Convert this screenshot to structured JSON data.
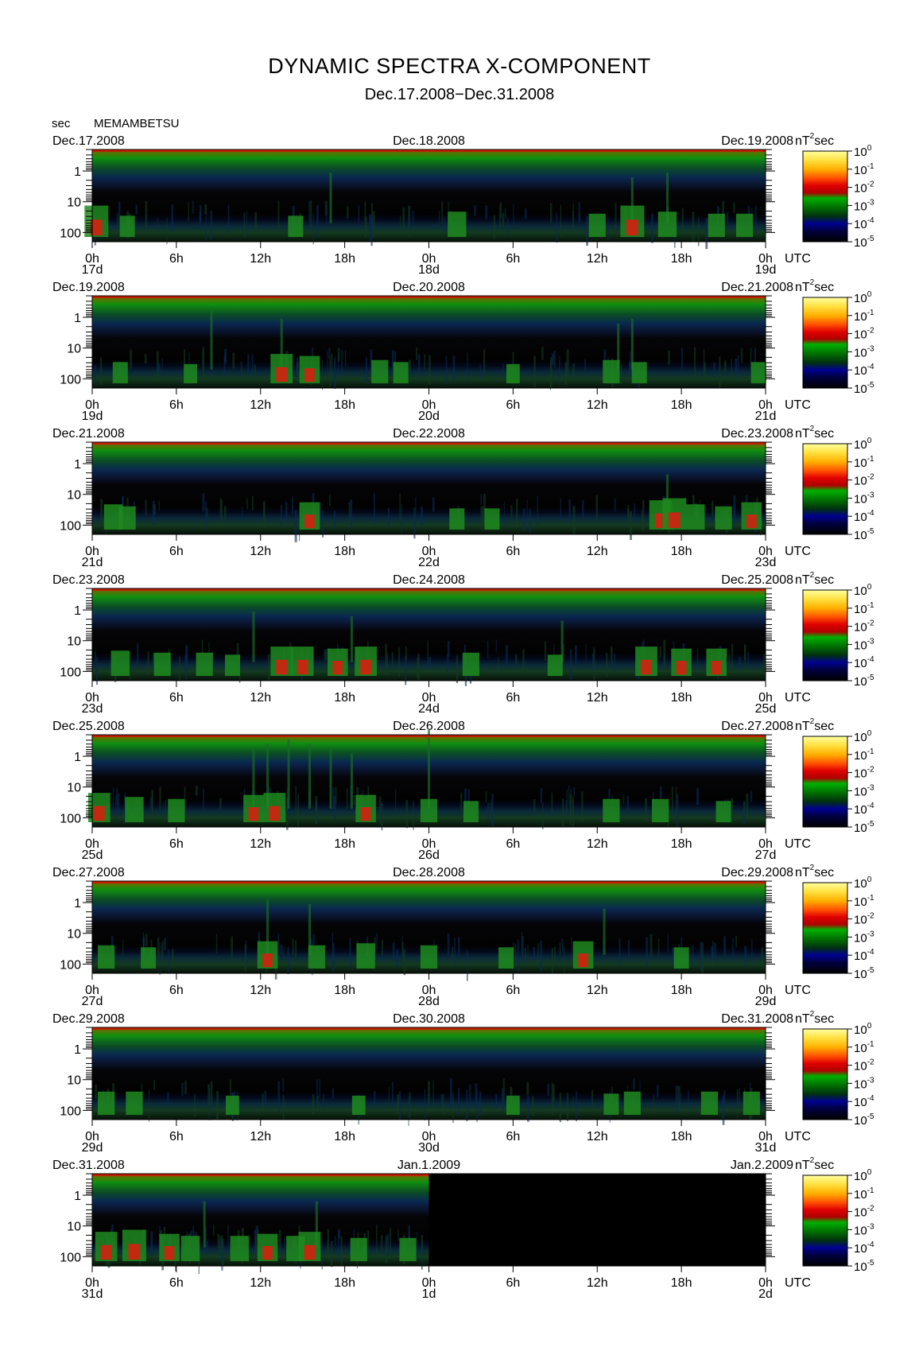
{
  "title": "DYNAMIC SPECTRA X-COMPONENT",
  "subtitle": "Dec.17.2008−Dec.31.2008",
  "y_unit": "sec",
  "station": "MEMAMBETSU",
  "colorbar": {
    "unit_base": "nT",
    "unit_exp": "2",
    "unit_suffix": "sec",
    "tick_mantissa": "10",
    "tick_exponents": [
      "0",
      "-1",
      "-2",
      "-3",
      "-4",
      "-5"
    ],
    "colors": [
      "#FFFF80",
      "#FFD000",
      "#FF9000",
      "#FF3000",
      "#E00000",
      "#00A000",
      "#008000",
      "#004000",
      "#000080",
      "#000000"
    ]
  },
  "utc_label": "UTC",
  "chart_data": [
    {
      "type": "heatmap",
      "date_left": "Dec.17.2008",
      "date_mid": "Dec.18.2008",
      "date_right": "Dec.19.2008",
      "x_ticks": [
        "0h",
        "6h",
        "12h",
        "18h",
        "0h",
        "6h",
        "12h",
        "18h",
        "0h"
      ],
      "day_labels": [
        "17d",
        "18d",
        "19d"
      ],
      "y_ticks": [
        "1",
        "10",
        "100"
      ],
      "data_fraction": 1.0,
      "events": [
        [
          0.3,
          1.0
        ],
        [
          2.5,
          0.5
        ],
        [
          14.5,
          0.5
        ],
        [
          26,
          0.7
        ],
        [
          36,
          0.6
        ],
        [
          38.5,
          1.0
        ],
        [
          41,
          0.7
        ],
        [
          44.5,
          0.6
        ],
        [
          46.5,
          0.6
        ]
      ],
      "streaks": [
        [
          17,
          0.4
        ],
        [
          38.5,
          0.35
        ],
        [
          41,
          0.4
        ]
      ]
    },
    {
      "type": "heatmap",
      "date_left": "Dec.19.2008",
      "date_mid": "Dec.20.2008",
      "date_right": "Dec.21.2008",
      "x_ticks": [
        "0h",
        "6h",
        "12h",
        "18h",
        "0h",
        "6h",
        "12h",
        "18h",
        "0h"
      ],
      "day_labels": [
        "19d",
        "20d",
        "21d"
      ],
      "y_ticks": [
        "1",
        "10",
        "100"
      ],
      "data_fraction": 1.0,
      "events": [
        [
          2,
          0.5
        ],
        [
          7,
          0.4
        ],
        [
          13.5,
          0.9
        ],
        [
          15.5,
          0.8
        ],
        [
          20.5,
          0.6
        ],
        [
          22,
          0.5
        ],
        [
          30,
          0.4
        ],
        [
          37,
          0.6
        ],
        [
          39,
          0.5
        ],
        [
          47.5,
          0.5
        ]
      ],
      "streaks": [
        [
          8.5,
          0.5
        ],
        [
          13.5,
          0.4
        ],
        [
          37.5,
          0.35
        ],
        [
          38.5,
          0.4
        ]
      ]
    },
    {
      "type": "heatmap",
      "date_left": "Dec.21.2008",
      "date_mid": "Dec.22.2008",
      "date_right": "Dec.23.2008",
      "x_ticks": [
        "0h",
        "6h",
        "12h",
        "18h",
        "0h",
        "6h",
        "12h",
        "18h",
        "0h"
      ],
      "day_labels": [
        "21d",
        "22d",
        "23d"
      ],
      "y_ticks": [
        "1",
        "10",
        "100"
      ],
      "data_fraction": 1.0,
      "events": [
        [
          1.5,
          0.7
        ],
        [
          2.5,
          0.6
        ],
        [
          15.5,
          0.8
        ],
        [
          26,
          0.5
        ],
        [
          28.5,
          0.5
        ],
        [
          40.5,
          0.9
        ],
        [
          41.5,
          1.0
        ],
        [
          43,
          0.7
        ],
        [
          45,
          0.6
        ],
        [
          47,
          0.8
        ]
      ],
      "streaks": [
        [
          41,
          0.3
        ]
      ]
    },
    {
      "type": "heatmap",
      "date_left": "Dec.23.2008",
      "date_mid": "Dec.24.2008",
      "date_right": "Dec.25.2008",
      "x_ticks": [
        "0h",
        "6h",
        "12h",
        "18h",
        "0h",
        "6h",
        "12h",
        "18h",
        "0h"
      ],
      "day_labels": [
        "23d",
        "24d",
        "25d"
      ],
      "y_ticks": [
        "1",
        "10",
        "100"
      ],
      "data_fraction": 1.0,
      "events": [
        [
          2,
          0.7
        ],
        [
          5,
          0.6
        ],
        [
          8,
          0.6
        ],
        [
          10,
          0.5
        ],
        [
          13.5,
          0.9
        ],
        [
          15,
          0.9
        ],
        [
          17.5,
          0.8
        ],
        [
          19.5,
          0.9
        ],
        [
          27,
          0.6
        ],
        [
          33,
          0.5
        ],
        [
          39.5,
          0.9
        ],
        [
          42,
          0.8
        ],
        [
          44.5,
          0.8
        ]
      ],
      "streaks": [
        [
          11.5,
          0.4
        ],
        [
          18.5,
          0.35
        ],
        [
          33.5,
          0.3
        ]
      ]
    },
    {
      "type": "heatmap",
      "date_left": "Dec.25.2008",
      "date_mid": "Dec.26.2008",
      "date_right": "Dec.27.2008",
      "x_ticks": [
        "0h",
        "6h",
        "12h",
        "18h",
        "0h",
        "6h",
        "12h",
        "18h",
        "0h"
      ],
      "day_labels": [
        "25d",
        "26d",
        "27d"
      ],
      "y_ticks": [
        "1",
        "10",
        "100"
      ],
      "data_fraction": 1.0,
      "events": [
        [
          0.5,
          0.9
        ],
        [
          3,
          0.7
        ],
        [
          6,
          0.6
        ],
        [
          11.5,
          0.8
        ],
        [
          13,
          0.9
        ],
        [
          19.5,
          0.8
        ],
        [
          24,
          0.6
        ],
        [
          27,
          0.5
        ],
        [
          37,
          0.6
        ],
        [
          40.5,
          0.6
        ],
        [
          45,
          0.5
        ]
      ],
      "streaks": [
        [
          11.5,
          0.5
        ],
        [
          12.5,
          0.55
        ],
        [
          14,
          0.6
        ],
        [
          15.5,
          0.55
        ],
        [
          17,
          0.5
        ],
        [
          18.5,
          0.45
        ],
        [
          24,
          0.7
        ]
      ]
    },
    {
      "type": "heatmap",
      "date_left": "Dec.27.2008",
      "date_mid": "Dec.28.2008",
      "date_right": "Dec.29.2008",
      "x_ticks": [
        "0h",
        "6h",
        "12h",
        "18h",
        "0h",
        "6h",
        "12h",
        "18h",
        "0h"
      ],
      "day_labels": [
        "27d",
        "28d",
        "29d"
      ],
      "y_ticks": [
        "1",
        "10",
        "100"
      ],
      "data_fraction": 1.0,
      "events": [
        [
          1,
          0.6
        ],
        [
          4,
          0.5
        ],
        [
          12.5,
          0.8
        ],
        [
          16,
          0.6
        ],
        [
          19.5,
          0.7
        ],
        [
          24,
          0.6
        ],
        [
          29.5,
          0.5
        ],
        [
          35,
          0.8
        ],
        [
          42,
          0.5
        ]
      ],
      "streaks": [
        [
          12.5,
          0.45
        ],
        [
          15.5,
          0.4
        ],
        [
          36.5,
          0.35
        ]
      ]
    },
    {
      "type": "heatmap",
      "date_left": "Dec.29.2008",
      "date_mid": "Dec.30.2008",
      "date_right": "Dec.31.2008",
      "x_ticks": [
        "0h",
        "6h",
        "12h",
        "18h",
        "0h",
        "6h",
        "12h",
        "18h",
        "0h"
      ],
      "day_labels": [
        "29d",
        "30d",
        "31d"
      ],
      "y_ticks": [
        "1",
        "10",
        "100"
      ],
      "data_fraction": 1.0,
      "events": [
        [
          1,
          0.6
        ],
        [
          3,
          0.6
        ],
        [
          10,
          0.4
        ],
        [
          19,
          0.4
        ],
        [
          30,
          0.4
        ],
        [
          37,
          0.5
        ],
        [
          38.5,
          0.6
        ],
        [
          44,
          0.6
        ],
        [
          47,
          0.6
        ]
      ],
      "streaks": []
    },
    {
      "type": "heatmap",
      "date_left": "Dec.31.2008",
      "date_mid": "Jan.1.2009",
      "date_right": "Jan.2.2009",
      "x_ticks": [
        "0h",
        "6h",
        "12h",
        "18h",
        "0h",
        "6h",
        "12h",
        "18h",
        "0h"
      ],
      "day_labels": [
        "31d",
        "1d",
        "2d"
      ],
      "y_ticks": [
        "1",
        "10",
        "100"
      ],
      "data_fraction": 0.5,
      "events": [
        [
          1,
          0.9
        ],
        [
          3,
          1.0
        ],
        [
          5.5,
          0.8
        ],
        [
          7,
          0.7
        ],
        [
          10.5,
          0.7
        ],
        [
          12.5,
          0.8
        ],
        [
          14.5,
          0.7
        ],
        [
          15.5,
          0.9
        ],
        [
          19,
          0.6
        ],
        [
          22.5,
          0.6
        ]
      ],
      "streaks": [
        [
          8,
          0.35
        ],
        [
          16,
          0.35
        ]
      ]
    }
  ]
}
